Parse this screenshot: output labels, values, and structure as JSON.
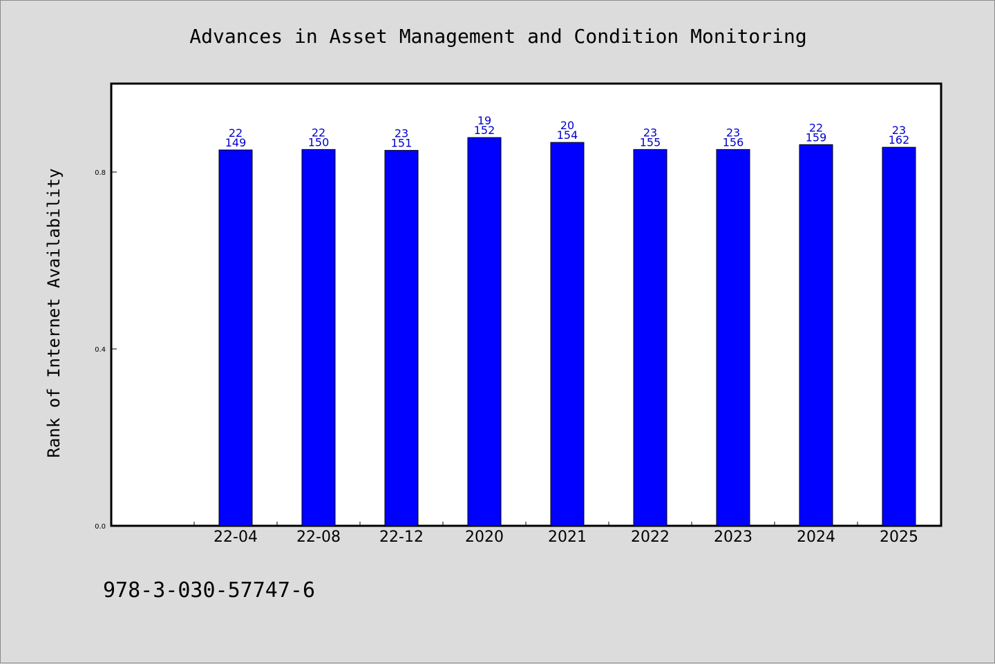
{
  "chart_data": {
    "type": "bar",
    "title": "Advances in Asset Management and Condition Monitoring",
    "xlabel": "",
    "ylabel": "Rank of Internet Availability",
    "categories": [
      "22-04",
      "22-08",
      "22-12",
      "2020",
      "2021",
      "2022",
      "2023",
      "2024",
      "2025"
    ],
    "values": [
      0.85,
      0.851,
      0.849,
      0.878,
      0.867,
      0.851,
      0.851,
      0.862,
      0.856
    ],
    "data_labels_top": [
      "22",
      "22",
      "23",
      "19",
      "20",
      "23",
      "23",
      "22",
      "23"
    ],
    "data_labels_bottom": [
      "149",
      "150",
      "151",
      "152",
      "154",
      "155",
      "156",
      "159",
      "162"
    ],
    "ylim": [
      0,
      1.0
    ],
    "yticks": [
      0.0,
      0.4,
      0.8
    ],
    "ytick_labels": [
      "0.0",
      "0.4",
      "0.8"
    ],
    "grid": false,
    "bar_color": "#0000ff",
    "label_color": "#0000cc"
  },
  "footer_text": "978-3-030-57747-6"
}
